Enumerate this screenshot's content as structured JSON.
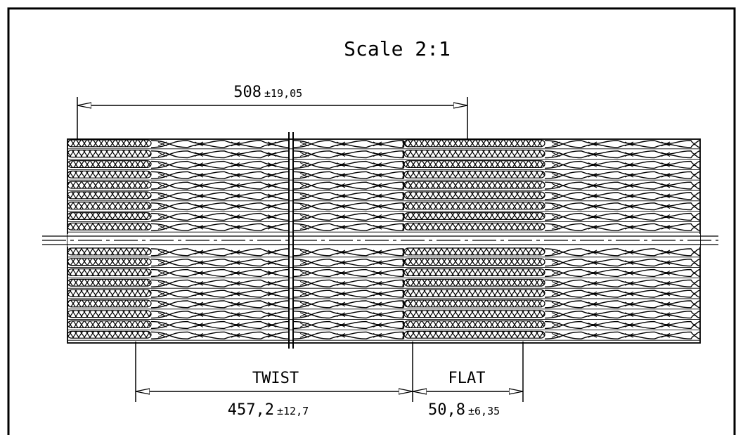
{
  "scale_label": "Scale 2:1",
  "dimensions": {
    "overall": {
      "value": "508",
      "tolerance": "±19,05"
    },
    "twist": {
      "label": "TWIST",
      "value": "457,2",
      "tolerance": "±12,7"
    },
    "flat": {
      "label": "FLAT",
      "value": "50,8",
      "tolerance": "±6,35"
    }
  },
  "cable": {
    "conductor_rows_per_half": 9,
    "segments": [
      "flat",
      "twist",
      "break",
      "twist",
      "flat",
      "twist"
    ]
  },
  "colors": {
    "line": "#000000",
    "background": "#ffffff"
  }
}
